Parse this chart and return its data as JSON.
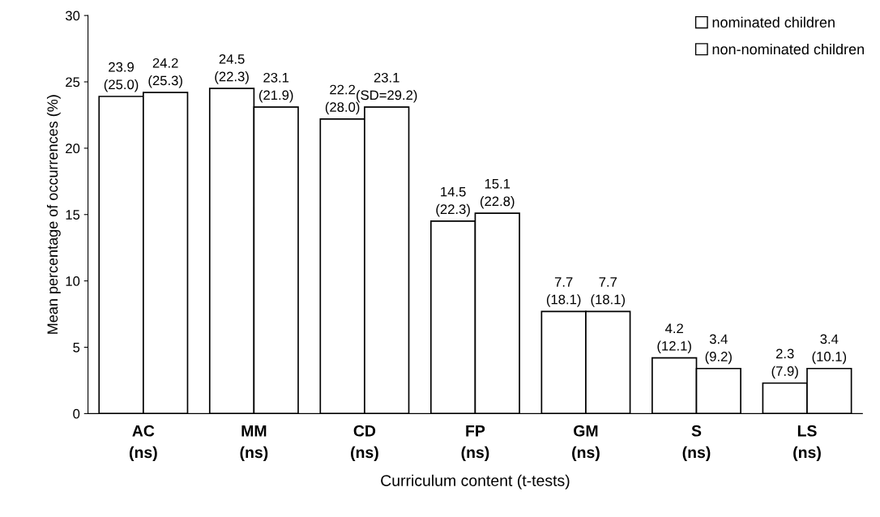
{
  "chart_data": {
    "type": "bar",
    "xlabel": "Curriculum content (t-tests)",
    "ylabel": "Mean percentage of occurrences (%)",
    "categories": [
      "AC\n(ns)",
      "MM\n(ns)",
      "CD\n(ns)",
      "FP\n(ns)",
      "GM\n(ns)",
      "S\n(ns)",
      "LS\n(ns)"
    ],
    "series": [
      {
        "name": "nominated children",
        "color": "#ffffff",
        "values": [
          23.9,
          24.5,
          22.2,
          14.5,
          7.7,
          4.2,
          2.3
        ],
        "value_labels": [
          "23.9\n(25.0)",
          "24.5\n(22.3)",
          "22.2\n(28.0)",
          "14.5\n(22.3)",
          "7.7\n(18.1)",
          "4.2\n(12.1)",
          "2.3\n(7.9)"
        ]
      },
      {
        "name": "non-nominated children",
        "color": "#ffffff",
        "values": [
          24.2,
          23.1,
          23.1,
          15.1,
          7.7,
          3.4,
          3.4
        ],
        "value_labels": [
          "24.2\n(25.3)",
          "23.1\n(21.9)",
          "23.1\n(SD=29.2)",
          "15.1\n(22.8)",
          "7.7\n(18.1)",
          "3.4\n(9.2)",
          "3.4\n(10.1)"
        ]
      }
    ],
    "ylim": [
      0,
      30
    ],
    "yticks": [
      0,
      5,
      10,
      15,
      20,
      25,
      30
    ],
    "grid": false,
    "legend": "top right"
  }
}
